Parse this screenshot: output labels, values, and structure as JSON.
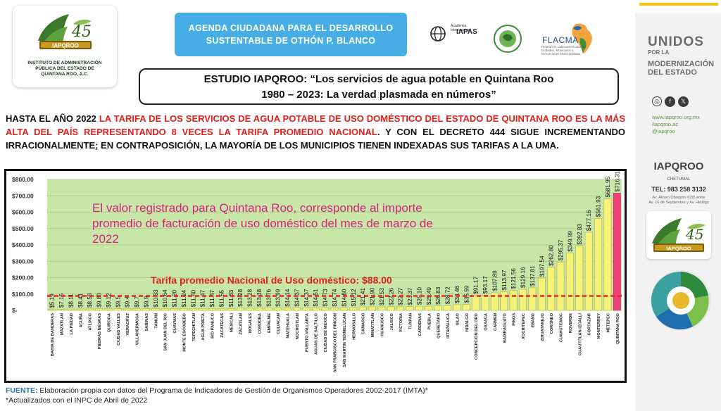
{
  "header": {
    "logo_number": "45",
    "logo_brand": "IAPQROO",
    "institute_lines": [
      "INSTITUTO DE ADMINISTRACIÓN",
      "PÚBLICA DEL ESTADO DE",
      "QUINTANA ROO, A.C."
    ],
    "agenda_lines": [
      "AGENDA CIUDADANA PARA EL DESARROLLO",
      "SUSTENTABLE DE OTHÓN P. BLANCO"
    ],
    "iapas_small": "Academia Internacional",
    "iapas_name": "IAPAS",
    "flacma_name": "FLACMA",
    "flacma_sub": "Federación Latinoamericana de Ciudades, Municipios y Asociaciones Municipalistas"
  },
  "study": {
    "line1": "ESTUDIO IAPQROO: “Los servicios de agua potable en Quintana Roo",
    "line2": "1980 – 2023: La verdad plasmada en números”"
  },
  "paragraph": {
    "part1": "HASTA EL AÑO 2022 ",
    "part2_red": "LA TARIFA DE LOS SERVICIOS DE AGUA POTABLE DE USO DOMÉSTICO DEL ESTADO DE QUINTANA ROO ES LA MÁS ALTA DEL PAÍS REPRESENTANDO 8 VECES LA TARIFA PROMEDIO NACIONAL",
    "part3": ". Y CON EL DECRETO 444 SIGUE INCREMENTANDO IRRACIONALMENTE; EN CONTRAPOSICIÓN, LA MAYORÍA DE LOS MUNICIPIOS TIENEN INDEXADAS SUS TARIFAS A LA UMA."
  },
  "chart_data": {
    "type": "bar",
    "y_ticks": [
      "$-",
      "$100.00",
      "$200.00",
      "$300.00",
      "$400.00",
      "$500.00",
      "$600.00",
      "$700.00",
      "$800.00"
    ],
    "ylim": [
      0,
      800
    ],
    "grid": true,
    "annotation_lines": [
      "El valor registrado para Quintana Roo, corresponde al importe",
      "promedio de facturación de uso doméstico del mes de marzo de",
      "2022"
    ],
    "reference_line": {
      "value": 88,
      "label": "Tarifa promedio Nacional de Uso doméstico: $88.00"
    },
    "colors": {
      "bars": "#f7f27a",
      "bar_border": "#b6b03c",
      "highlight": "#f0427a",
      "plot_bg": "#c8e6a8",
      "annotation": "#d6227a",
      "reference": "#e0201a"
    },
    "categories": [
      "BAHIA DE BANDERAS",
      "MAZATLAN",
      "LA PIEDAD",
      "ACUÑA",
      "ATLIXCO",
      "PIEDRAS NEGRAS",
      "QUIROGA",
      "CIUDAD VALLES",
      "VERACRUZ",
      "VILLAHERMOSA",
      "SABINAS",
      "TAMUIN",
      "SAN JUAN DEL RIO",
      "GUAYMAS",
      "MONTE ESCOBEDO",
      "TEPECHITLAN",
      "AGUA PRIETA",
      "RIO PANUCO",
      "ZACATECAS",
      "MEXICALI",
      "ZACATLAN",
      "NOGALES",
      "CORDOBA",
      "EMPALME",
      "CULIACAN",
      "MATEHUALA",
      "NOCHISTLAN",
      "PUERTO VALLARTA",
      "AGUAS DE SALTILLO",
      "CIUDAD DE MEXICO",
      "SAN FRANCISCO DEL RINCON",
      "SAN MARTIN TEXMELUCAN",
      "HERMOSILLO",
      "CAMARGO",
      "MINATITLAN",
      "HUANUSCO",
      "JALISCO",
      "VICTORIA",
      "TUXPAN",
      "CARDENAS",
      "PUEBLA",
      "QUERETARO",
      "IXTAPALUCA",
      "SILAO",
      "HIDALGO",
      "CONCEPCION DEL ORO",
      "OAXACA",
      "CARMEN",
      "BADIRAGUATO",
      "PINOS",
      "XOCHITEPEC",
      "EBANO",
      "ZIHUATANEJO",
      "CORONEO",
      "CUAHUTEMOC",
      "ROVERDE",
      "CUAUTITLAN IZCALLI",
      "CORTAZAR",
      "MONTERREY",
      "METEPEC",
      "QUINTANA ROO"
    ],
    "values": [
      5.19,
      7.15,
      8.11,
      8.41,
      8.58,
      9.8,
      9.12,
      9.5,
      9.4,
      9.7,
      9.9,
      10.33,
      10.64,
      11.2,
      11.24,
      11.4,
      11.47,
      11.47,
      11.55,
      11.83,
      13.28,
      13.28,
      13.38,
      13.76,
      13.99,
      14.14,
      14.37,
      14.37,
      14.51,
      14.73,
      14.74,
      14.8,
      15.12,
      21.41,
      21.9,
      21.53,
      22.26,
      22.27,
      23.37,
      25.1,
      25.49,
      26.83,
      28.72,
      34.46,
      35.59,
      91.17,
      93.17,
      107.89,
      113.97,
      121.56,
      129.16,
      137.81,
      197.54,
      262.8,
      295.37,
      349.99,
      392.83,
      477.16,
      561.93,
      681.95,
      716.31
    ],
    "value_labels": [
      "$5.19",
      "$7.15",
      "$8.11",
      "$8.41",
      "$8.58",
      "$9.80",
      "$9.12",
      "$9.5",
      "$9.4",
      "$9.7",
      "$9.9",
      "$10.33",
      "$10.64",
      "$11.20",
      "$11.24",
      "$11.40",
      "$11.47",
      "$11.47",
      "$11.55",
      "$11.83",
      "$13.28",
      "$13.28",
      "$13.38",
      "$13.76",
      "$13.99",
      "$14.14",
      "$14.37",
      "$14.37",
      "$14.51",
      "$14.73",
      "$14.74",
      "$14.80",
      "$15.12",
      "$21.41",
      "$21.90",
      "$21.53",
      "$22.26",
      "$22.27",
      "$23.37",
      "$25.10",
      "$25.49",
      "$26.83",
      "$28.72",
      "$34.46",
      "$35.59",
      "$91.17",
      "$93.17",
      "$107.89",
      "$113.97",
      "$121.56",
      "$129.16",
      "$137.81",
      "$197.54",
      "$262.80",
      "$295.37",
      "$349.99",
      "$392.83",
      "$477.16",
      "$561.93",
      "$681.95",
      "$716.31"
    ]
  },
  "footnote": {
    "label": "FUENTE:",
    "text": " Elaboración propia con datos del Programa de Indicadores de Gestión de Organismos Operadores 2002-2017 (IMTA)*",
    "line2": "*Actualizados con el INPC de Abril de 2022"
  },
  "sidebar": {
    "unidos_1": "UNIDOS",
    "unidos_por": "POR LA",
    "unidos_2": "MODERNIZACIÓN",
    "unidos_3": "DEL ESTADO",
    "social_icons": [
      "web-icon",
      "facebook-icon",
      "x-icon"
    ],
    "fb": "f",
    "x": "𝕏",
    "link1": "www.iapqroo.org.mx",
    "link2": "/iapqroo.ac",
    "link3": "@iapqroo",
    "brand": "IAPQROO",
    "city": "CHETUMAL",
    "tel": "TEL: 983 258 3132",
    "addr1": "Av. Álvaro Obregón #155 entre",
    "addr2": "Av. 16 de Septiembre y Av. Hidalgo",
    "logo_number": "45",
    "logo_brand": "IAPQROO"
  }
}
